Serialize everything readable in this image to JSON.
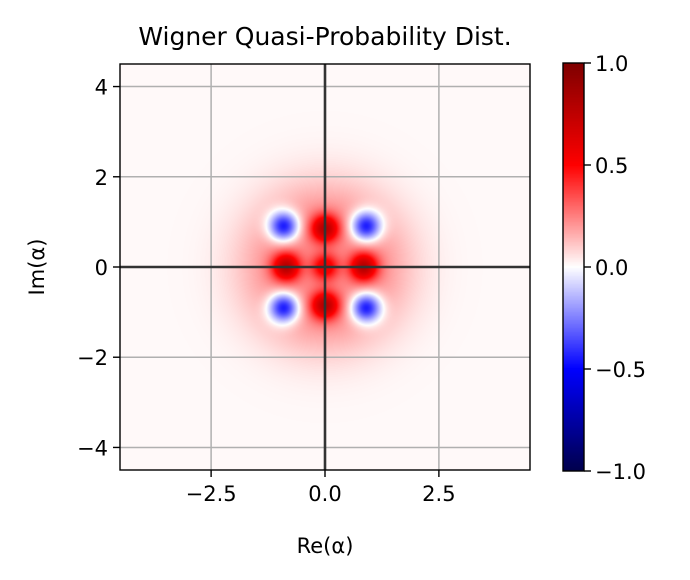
{
  "chart_data": {
    "type": "heatmap",
    "title": "Wigner Quasi-Probability Dist.",
    "xlabel": "Re(α)",
    "ylabel": "Im(α)",
    "xlim": [
      -4.5,
      4.5
    ],
    "ylim": [
      -4.5,
      4.5
    ],
    "x_ticks": [
      -2.5,
      0.0,
      2.5
    ],
    "x_tick_labels": [
      "−2.5",
      "0.0",
      "2.5"
    ],
    "y_ticks": [
      4,
      2,
      0,
      -2,
      -4
    ],
    "y_tick_labels": [
      "4",
      "2",
      "0",
      "−2",
      "−4"
    ],
    "grid": true,
    "colormap": "seismic",
    "colorbar": {
      "vmin": -1.0,
      "vmax": 1.0,
      "ticks": [
        1.0,
        0.5,
        0.0,
        -0.5,
        -1.0
      ],
      "tick_labels": [
        "1.0",
        "0.5",
        "0.0",
        "−0.5",
        "−1.0"
      ]
    },
    "features": [
      {
        "kind": "positive_peak",
        "x": 0.0,
        "y": 0.0,
        "value": 0.45
      },
      {
        "kind": "positive_peak",
        "x": 0.85,
        "y": 0.0,
        "value": 0.55
      },
      {
        "kind": "positive_peak",
        "x": -0.85,
        "y": 0.0,
        "value": 0.55
      },
      {
        "kind": "positive_peak",
        "x": 0.0,
        "y": 0.85,
        "value": 0.55
      },
      {
        "kind": "positive_peak",
        "x": 0.0,
        "y": -0.85,
        "value": 0.55
      },
      {
        "kind": "negative_lobe",
        "x": 0.9,
        "y": 0.9,
        "value": -0.5
      },
      {
        "kind": "negative_lobe",
        "x": -0.9,
        "y": 0.9,
        "value": -0.5
      },
      {
        "kind": "negative_lobe",
        "x": 0.9,
        "y": -0.9,
        "value": -0.5
      },
      {
        "kind": "negative_lobe",
        "x": -0.9,
        "y": -0.9,
        "value": -0.5
      },
      {
        "kind": "positive_ring",
        "x": 0.0,
        "y": 0.0,
        "radius": 1.9,
        "value": 0.25
      }
    ]
  },
  "colors": {
    "axes_edge": "#000000",
    "grid": "#b0b0b0",
    "zero_lines": "#333333",
    "background": "#ffffff"
  }
}
